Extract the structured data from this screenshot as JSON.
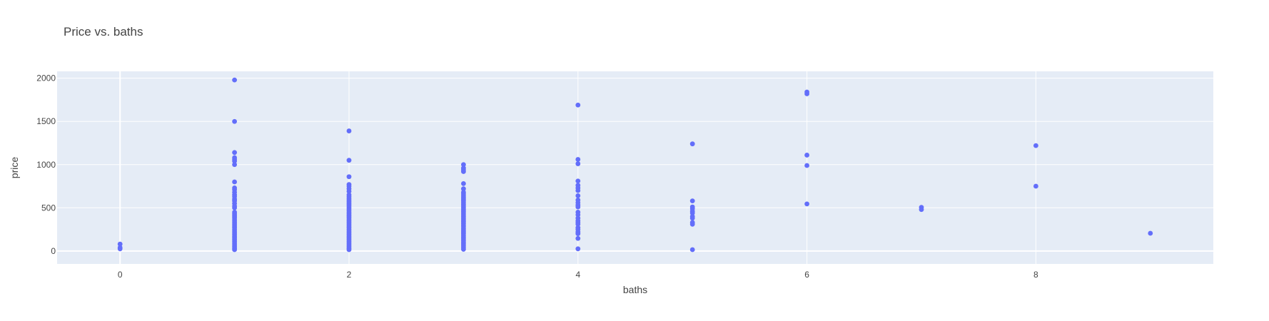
{
  "chart_data": {
    "type": "scatter",
    "title": "Price vs. baths",
    "xlabel": "baths",
    "ylabel": "price",
    "xlim": [
      -0.55,
      9.55
    ],
    "ylim": [
      -150,
      2080
    ],
    "xticks": [
      0,
      2,
      4,
      6,
      8
    ],
    "yticks": [
      0,
      500,
      1000,
      1500,
      2000
    ],
    "grid": true,
    "legend": "none",
    "colors": {
      "marker": "#636efa",
      "plot_background": "#e5ecf6",
      "grid": "#ffffff"
    },
    "series": [
      {
        "points": [
          [
            0,
            80
          ],
          [
            0,
            40
          ],
          [
            0,
            25
          ],
          [
            1,
            1980
          ],
          [
            1,
            1500
          ],
          [
            1,
            1140
          ],
          [
            1,
            1080
          ],
          [
            1,
            1060
          ],
          [
            1,
            1040
          ],
          [
            1,
            1000
          ],
          [
            1,
            800
          ],
          [
            1,
            730
          ],
          [
            1,
            710
          ],
          [
            1,
            680
          ],
          [
            1,
            650
          ],
          [
            1,
            630
          ],
          [
            1,
            600
          ],
          [
            1,
            580
          ],
          [
            1,
            550
          ],
          [
            1,
            520
          ],
          [
            1,
            500
          ],
          [
            1,
            450
          ],
          [
            1,
            430
          ],
          [
            1,
            410
          ],
          [
            1,
            390
          ],
          [
            1,
            370
          ],
          [
            1,
            350
          ],
          [
            1,
            330
          ],
          [
            1,
            310
          ],
          [
            1,
            290
          ],
          [
            1,
            270
          ],
          [
            1,
            250
          ],
          [
            1,
            230
          ],
          [
            1,
            210
          ],
          [
            1,
            190
          ],
          [
            1,
            170
          ],
          [
            1,
            150
          ],
          [
            1,
            130
          ],
          [
            1,
            110
          ],
          [
            1,
            90
          ],
          [
            1,
            70
          ],
          [
            1,
            50
          ],
          [
            1,
            30
          ],
          [
            1,
            15
          ],
          [
            2,
            1390
          ],
          [
            2,
            1050
          ],
          [
            2,
            860
          ],
          [
            2,
            770
          ],
          [
            2,
            750
          ],
          [
            2,
            720
          ],
          [
            2,
            690
          ],
          [
            2,
            650
          ],
          [
            2,
            630
          ],
          [
            2,
            610
          ],
          [
            2,
            590
          ],
          [
            2,
            570
          ],
          [
            2,
            550
          ],
          [
            2,
            530
          ],
          [
            2,
            510
          ],
          [
            2,
            490
          ],
          [
            2,
            470
          ],
          [
            2,
            450
          ],
          [
            2,
            430
          ],
          [
            2,
            410
          ],
          [
            2,
            390
          ],
          [
            2,
            370
          ],
          [
            2,
            350
          ],
          [
            2,
            330
          ],
          [
            2,
            310
          ],
          [
            2,
            290
          ],
          [
            2,
            270
          ],
          [
            2,
            250
          ],
          [
            2,
            230
          ],
          [
            2,
            210
          ],
          [
            2,
            190
          ],
          [
            2,
            170
          ],
          [
            2,
            150
          ],
          [
            2,
            130
          ],
          [
            2,
            110
          ],
          [
            2,
            90
          ],
          [
            2,
            70
          ],
          [
            2,
            50
          ],
          [
            2,
            30
          ],
          [
            2,
            15
          ],
          [
            3,
            1000
          ],
          [
            3,
            960
          ],
          [
            3,
            940
          ],
          [
            3,
            920
          ],
          [
            3,
            780
          ],
          [
            3,
            720
          ],
          [
            3,
            680
          ],
          [
            3,
            660
          ],
          [
            3,
            640
          ],
          [
            3,
            620
          ],
          [
            3,
            600
          ],
          [
            3,
            580
          ],
          [
            3,
            560
          ],
          [
            3,
            540
          ],
          [
            3,
            520
          ],
          [
            3,
            500
          ],
          [
            3,
            480
          ],
          [
            3,
            460
          ],
          [
            3,
            440
          ],
          [
            3,
            420
          ],
          [
            3,
            400
          ],
          [
            3,
            380
          ],
          [
            3,
            360
          ],
          [
            3,
            340
          ],
          [
            3,
            320
          ],
          [
            3,
            300
          ],
          [
            3,
            280
          ],
          [
            3,
            260
          ],
          [
            3,
            240
          ],
          [
            3,
            220
          ],
          [
            3,
            200
          ],
          [
            3,
            180
          ],
          [
            3,
            160
          ],
          [
            3,
            140
          ],
          [
            3,
            120
          ],
          [
            3,
            100
          ],
          [
            3,
            80
          ],
          [
            3,
            60
          ],
          [
            3,
            40
          ],
          [
            3,
            20
          ],
          [
            4,
            1690
          ],
          [
            4,
            1060
          ],
          [
            4,
            1010
          ],
          [
            4,
            810
          ],
          [
            4,
            760
          ],
          [
            4,
            730
          ],
          [
            4,
            700
          ],
          [
            4,
            640
          ],
          [
            4,
            590
          ],
          [
            4,
            560
          ],
          [
            4,
            530
          ],
          [
            4,
            510
          ],
          [
            4,
            450
          ],
          [
            4,
            420
          ],
          [
            4,
            380
          ],
          [
            4,
            350
          ],
          [
            4,
            330
          ],
          [
            4,
            310
          ],
          [
            4,
            270
          ],
          [
            4,
            250
          ],
          [
            4,
            220
          ],
          [
            4,
            200
          ],
          [
            4,
            145
          ],
          [
            4,
            25
          ],
          [
            5,
            1240
          ],
          [
            5,
            580
          ],
          [
            5,
            510
          ],
          [
            5,
            490
          ],
          [
            5,
            460
          ],
          [
            5,
            440
          ],
          [
            5,
            400
          ],
          [
            5,
            380
          ],
          [
            5,
            330
          ],
          [
            5,
            310
          ],
          [
            5,
            15
          ],
          [
            6,
            1840
          ],
          [
            6,
            1820
          ],
          [
            6,
            1110
          ],
          [
            6,
            990
          ],
          [
            6,
            545
          ],
          [
            7,
            505
          ],
          [
            7,
            480
          ],
          [
            8,
            1220
          ],
          [
            8,
            750
          ],
          [
            9,
            205
          ]
        ]
      }
    ]
  }
}
